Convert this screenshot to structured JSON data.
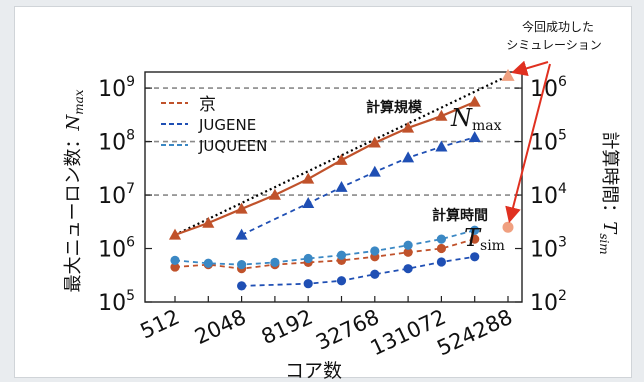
{
  "chart_data": {
    "type": "line",
    "xscale": "log2",
    "x": [
      512,
      1024,
      2048,
      4096,
      8192,
      16384,
      32768,
      65536,
      131072,
      262144,
      524288
    ],
    "x_ticks": [
      512,
      2048,
      8192,
      32768,
      131072,
      524288
    ],
    "x_tick_labels": [
      "512",
      "2048",
      "8192",
      "32768",
      "131072",
      "524288"
    ],
    "xlabel": "コア数",
    "y_left": {
      "label": "最大ニューロン数：",
      "label_symbol": "N",
      "label_sub": "max",
      "scale": "log",
      "lim": [
        100000,
        2000000000
      ],
      "ticks": [
        {
          "base": "10",
          "exp": "5",
          "value": 100000
        },
        {
          "base": "10",
          "exp": "6",
          "value": 1000000
        },
        {
          "base": "10",
          "exp": "7",
          "value": 10000000
        },
        {
          "base": "10",
          "exp": "8",
          "value": 100000000
        },
        {
          "base": "10",
          "exp": "9",
          "value": 1000000000
        }
      ],
      "dashed_gridlines": [
        10000000,
        100000000,
        1000000000
      ]
    },
    "y_right": {
      "label": "計算時間：",
      "label_symbol": "T",
      "label_sub": "sim",
      "scale": "log",
      "lim": [
        100,
        2000000
      ],
      "ticks": [
        {
          "base": "10",
          "exp": "2",
          "value": 100
        },
        {
          "base": "10",
          "exp": "3",
          "value": 1000
        },
        {
          "base": "10",
          "exp": "4",
          "value": 10000
        },
        {
          "base": "10",
          "exp": "5",
          "value": 100000
        },
        {
          "base": "10",
          "exp": "6",
          "value": 1000000
        }
      ]
    },
    "legend": {
      "position": "top-left",
      "entries": [
        {
          "label": "京",
          "color": "#c0522b"
        },
        {
          "label": "JUGENE",
          "color": "#1f4fb4"
        },
        {
          "label": "JUQUEEN",
          "color": "#3b88c4"
        }
      ]
    },
    "series": [
      {
        "name": "京",
        "quantity": "Nmax",
        "axis": "left",
        "marker": "triangle",
        "color": "#c0522b",
        "line": "solid",
        "x": [
          512,
          1024,
          2048,
          4096,
          8192,
          16384,
          32768,
          65536,
          131072,
          262144
        ],
        "values": [
          1800000,
          3000000,
          5500000,
          10000000,
          20000000,
          45000000,
          95000000,
          180000000,
          300000000,
          550000000
        ]
      },
      {
        "name": "JUGENE",
        "quantity": "Nmax",
        "axis": "left",
        "marker": "triangle",
        "color": "#1f4fb4",
        "line": "dashed",
        "x": [
          2048,
          8192,
          16384,
          32768,
          65536,
          131072,
          262144
        ],
        "values": [
          1800000,
          7000000,
          14000000,
          27000000,
          50000000,
          80000000,
          120000000
        ]
      },
      {
        "name": "京",
        "quantity": "Tsim",
        "axis": "right",
        "marker": "circle",
        "color": "#c0522b",
        "line": "dashed",
        "x": [
          512,
          1024,
          2048,
          4096,
          8192,
          16384,
          32768,
          65536,
          131072,
          262144
        ],
        "values": [
          450,
          500,
          420,
          500,
          550,
          600,
          700,
          850,
          1000,
          1500
        ]
      },
      {
        "name": "JUGENE",
        "quantity": "Tsim",
        "axis": "right",
        "marker": "circle",
        "color": "#1f4fb4",
        "line": "dashed",
        "x": [
          2048,
          8192,
          16384,
          32768,
          65536,
          131072,
          262144
        ],
        "values": [
          200,
          220,
          250,
          330,
          420,
          560,
          700
        ]
      },
      {
        "name": "JUQUEEN",
        "quantity": "Tsim",
        "axis": "right",
        "marker": "circle",
        "color": "#3b88c4",
        "line": "dashed",
        "x": [
          512,
          1024,
          2048,
          4096,
          8192,
          16384,
          32768,
          65536,
          131072,
          262144
        ],
        "values": [
          600,
          530,
          500,
          550,
          650,
          750,
          900,
          1150,
          1500,
          2200
        ]
      }
    ],
    "special_points": [
      {
        "x": 524288,
        "axis": "left",
        "value": 1700000000,
        "marker": "triangle",
        "color": "#f0a080"
      },
      {
        "x": 524288,
        "axis": "right",
        "value": 2500,
        "marker": "circle",
        "color": "#f0a080"
      }
    ],
    "annotations": {
      "size_label": "計算規模",
      "size_symbol": "N",
      "size_sub": "max",
      "time_label": "計算時間",
      "time_symbol": "T",
      "time_sub": "sim",
      "callout": [
        "今回成功した",
        "シミュレーション"
      ],
      "dotted_line_color": "#000000",
      "arrow_color": "#e03020"
    }
  }
}
